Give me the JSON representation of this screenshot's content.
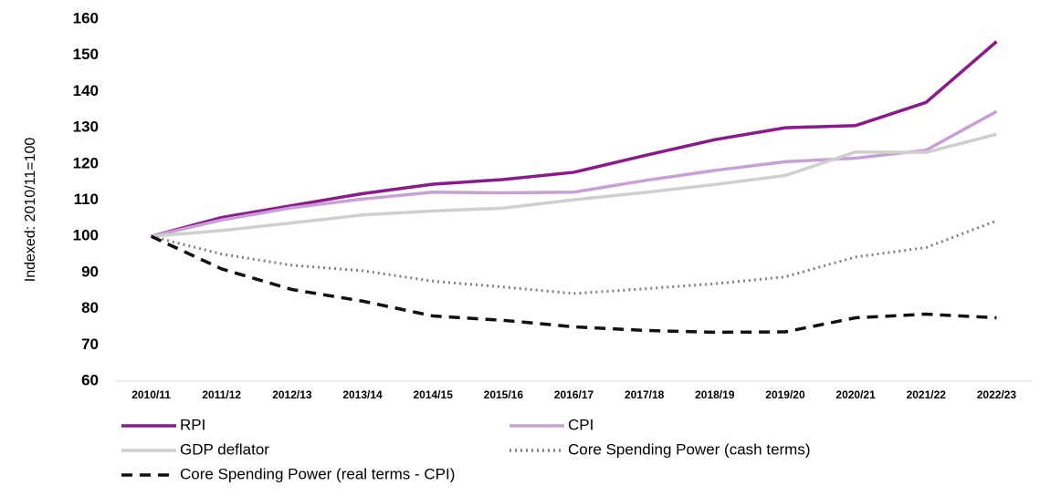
{
  "chart_data": {
    "type": "line",
    "y_label": "Indexed: 2010/11=100",
    "categories": [
      "2010/11",
      "2011/12",
      "2012/13",
      "2013/14",
      "2014/15",
      "2015/16",
      "2016/17",
      "2017/18",
      "2018/19",
      "2019/20",
      "2020/21",
      "2021/22",
      "2022/23"
    ],
    "series": [
      {
        "name": "RPI",
        "color": "#8b1a8f",
        "style": "solid",
        "values": [
          100,
          105.2,
          108.5,
          111.8,
          114.4,
          115.7,
          117.7,
          122.3,
          126.7,
          130,
          130.6,
          137,
          153.8
        ]
      },
      {
        "name": "CPI",
        "color": "#c9a0d6",
        "style": "solid",
        "values": [
          100,
          104.5,
          107.9,
          110.3,
          112.2,
          112,
          112.2,
          115.4,
          118.2,
          120.6,
          121.6,
          123.8,
          134.5
        ]
      },
      {
        "name": "GDP deflator",
        "color": "#cfcfcf",
        "style": "solid",
        "values": [
          100,
          101.6,
          103.7,
          105.9,
          107,
          107.8,
          110.1,
          112.1,
          114.3,
          116.8,
          123.3,
          123.2,
          128.2
        ]
      },
      {
        "name": "Core Spending Power (cash terms)",
        "color": "#808080",
        "style": "dotted",
        "values": [
          100,
          95.1,
          92,
          90.5,
          87.6,
          86,
          84.2,
          85.5,
          86.9,
          88.8,
          94.3,
          96.9,
          104.3
        ]
      },
      {
        "name": "Core Spending Power (real terms - CPI)",
        "color": "#111111",
        "style": "dashed",
        "values": [
          100,
          91,
          85.3,
          82.1,
          78,
          76.8,
          75,
          74,
          73.5,
          73.6,
          77.5,
          78.5,
          77.5
        ]
      }
    ],
    "ylim": [
      60,
      160
    ],
    "yticks": [
      60,
      70,
      80,
      90,
      100,
      110,
      120,
      130,
      140,
      150,
      160
    ],
    "grid": false,
    "legend": "bottom"
  }
}
